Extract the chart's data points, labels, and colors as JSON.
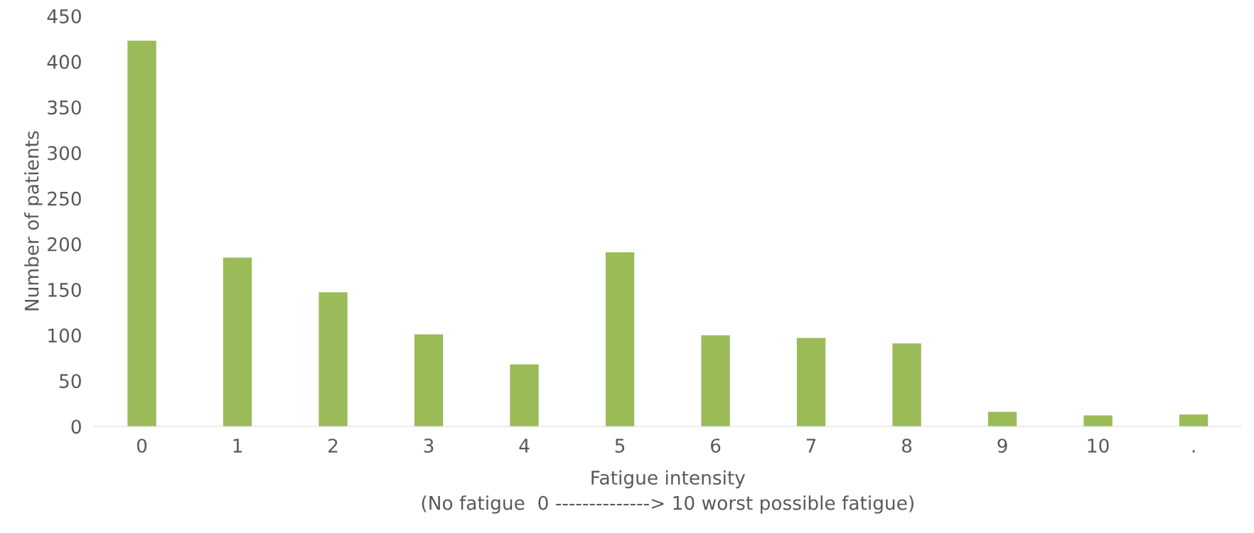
{
  "chart_data": {
    "type": "bar",
    "xlabel": "Fatigue intensity\n(No fatigue  0 --------------> 10 worst possible fatigue)",
    "ylabel": "Number of patients",
    "categories": [
      "0",
      "1",
      "2",
      "3",
      "4",
      "5",
      "6",
      "7",
      "8",
      "9",
      "10",
      "."
    ],
    "values": [
      423,
      185,
      147,
      101,
      68,
      191,
      100,
      97,
      91,
      16,
      12,
      13
    ],
    "color": "#9bbb59",
    "ylim": [
      0,
      450
    ],
    "yticks": [
      0,
      50,
      100,
      150,
      200,
      250,
      300,
      350,
      400,
      450
    ],
    "grid": false,
    "legend": false
  }
}
